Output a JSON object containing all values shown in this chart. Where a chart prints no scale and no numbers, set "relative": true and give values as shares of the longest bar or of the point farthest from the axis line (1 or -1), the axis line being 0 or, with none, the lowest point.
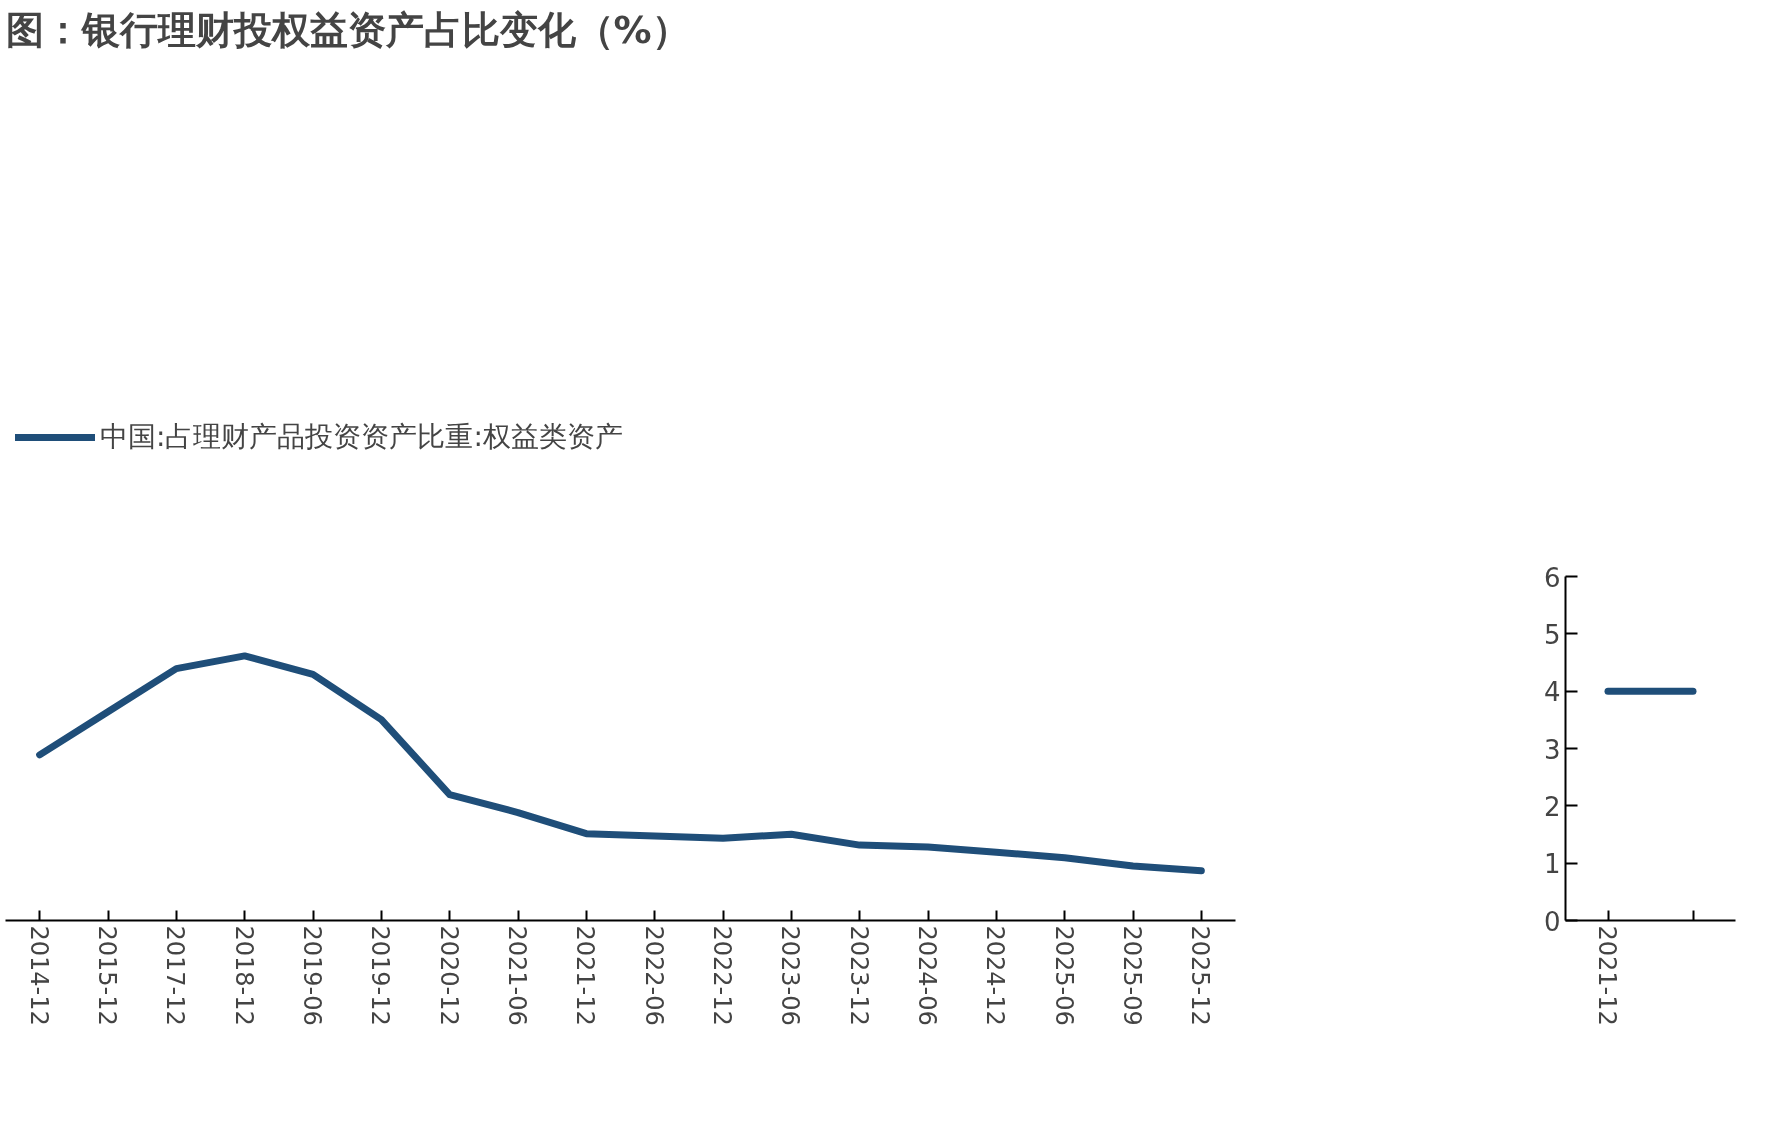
{
  "chart_data": [
    {
      "type": "line",
      "title": "图：银行理财投权益资产占比变化（%）",
      "relative": true,
      "legend": "top left",
      "categories": [
        "2014-12",
        "2015-12",
        "2017-12",
        "2018-12",
        "2019-06",
        "2019-12",
        "2020-12",
        "2021-06",
        "2021-12",
        "2022-06",
        "2022-12",
        "2023-06",
        "2023-12",
        "2024-06",
        "2024-12",
        "2025-06",
        "2025-09",
        "2025-12"
      ],
      "series": [
        {
          "name": "中国:占理财产品投资资产比重:权益类资产",
          "color": "#1f4e79",
          "values": [
            0.626,
            0.789,
            0.952,
            1,
            0.93,
            0.759,
            0.476,
            0.408,
            0.328,
            0.319,
            0.311,
            0.326,
            0.285,
            0.278,
            0.258,
            0.237,
            0.206,
            0.188
          ]
        }
      ]
    },
    {
      "type": "line",
      "categories": [
        "2021-12",
        null
      ],
      "ylim": [
        0,
        6
      ],
      "yticks": [
        0,
        1,
        2,
        3,
        4,
        5,
        6
      ],
      "series": [
        {
          "color": "#1f4e79",
          "values": [
            4,
            4
          ]
        }
      ]
    }
  ]
}
